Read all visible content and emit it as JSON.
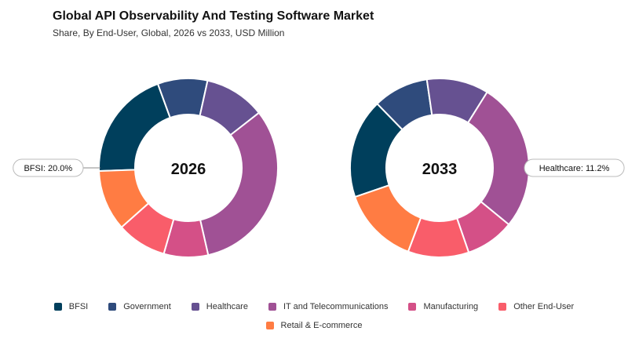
{
  "header": {
    "title": "Global API Observability And Testing Software Market",
    "subtitle": "Share, By End-User, Global, 2026 vs 2033, USD Million"
  },
  "colors": {
    "BFSI": "#003f5c",
    "Government": "#2f4b7c",
    "Healthcare": "#665191",
    "IT and Telecommunications": "#a05195",
    "Manufacturing": "#d45087",
    "Other End-User": "#f95d6a",
    "Retail & E-commerce": "#ff7c43"
  },
  "chart_data": [
    {
      "type": "pie",
      "variant": "donut",
      "center_label": "2026",
      "categories": [
        "BFSI",
        "Government",
        "Healthcare",
        "IT and Telecommunications",
        "Manufacturing",
        "Other End-User",
        "Retail & E-commerce"
      ],
      "values": [
        20.0,
        9.0,
        11.0,
        32.0,
        8.0,
        9.0,
        11.0
      ],
      "callout": {
        "label": "BFSI: 20.0%",
        "category": "BFSI"
      }
    },
    {
      "type": "pie",
      "variant": "donut",
      "center_label": "2033",
      "categories": [
        "BFSI",
        "Government",
        "Healthcare",
        "IT and Telecommunications",
        "Manufacturing",
        "Other End-User",
        "Retail & E-commerce"
      ],
      "values": [
        18.0,
        10.0,
        11.2,
        27.0,
        8.8,
        11.0,
        14.0
      ],
      "callout": {
        "label": "Healthcare: 11.2%",
        "category": "Healthcare"
      }
    }
  ],
  "legend": {
    "items": [
      "BFSI",
      "Government",
      "Healthcare",
      "IT and Telecommunications",
      "Manufacturing",
      "Other End-User",
      "Retail & E-commerce"
    ]
  }
}
